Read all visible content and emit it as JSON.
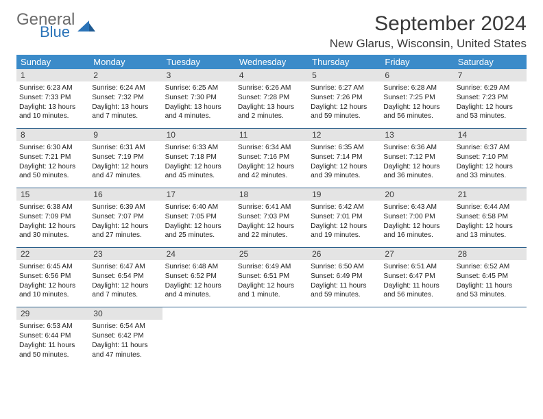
{
  "brand": {
    "general": "General",
    "blue": "Blue"
  },
  "title": "September 2024",
  "location": "New Glarus, Wisconsin, United States",
  "colors": {
    "header_bg": "#3b8bc9",
    "header_text": "#ffffff",
    "daynum_bg": "#e4e4e4",
    "rule": "#2a5e8a",
    "logo_blue": "#2a73b8",
    "logo_gray": "#6b6b6b",
    "page_bg": "#ffffff"
  },
  "daysOfWeek": [
    "Sunday",
    "Monday",
    "Tuesday",
    "Wednesday",
    "Thursday",
    "Friday",
    "Saturday"
  ],
  "weeks": [
    [
      {
        "n": "1",
        "sr": "6:23 AM",
        "ss": "7:33 PM",
        "dl": "13 hours and 10 minutes."
      },
      {
        "n": "2",
        "sr": "6:24 AM",
        "ss": "7:32 PM",
        "dl": "13 hours and 7 minutes."
      },
      {
        "n": "3",
        "sr": "6:25 AM",
        "ss": "7:30 PM",
        "dl": "13 hours and 4 minutes."
      },
      {
        "n": "4",
        "sr": "6:26 AM",
        "ss": "7:28 PM",
        "dl": "13 hours and 2 minutes."
      },
      {
        "n": "5",
        "sr": "6:27 AM",
        "ss": "7:26 PM",
        "dl": "12 hours and 59 minutes."
      },
      {
        "n": "6",
        "sr": "6:28 AM",
        "ss": "7:25 PM",
        "dl": "12 hours and 56 minutes."
      },
      {
        "n": "7",
        "sr": "6:29 AM",
        "ss": "7:23 PM",
        "dl": "12 hours and 53 minutes."
      }
    ],
    [
      {
        "n": "8",
        "sr": "6:30 AM",
        "ss": "7:21 PM",
        "dl": "12 hours and 50 minutes."
      },
      {
        "n": "9",
        "sr": "6:31 AM",
        "ss": "7:19 PM",
        "dl": "12 hours and 47 minutes."
      },
      {
        "n": "10",
        "sr": "6:33 AM",
        "ss": "7:18 PM",
        "dl": "12 hours and 45 minutes."
      },
      {
        "n": "11",
        "sr": "6:34 AM",
        "ss": "7:16 PM",
        "dl": "12 hours and 42 minutes."
      },
      {
        "n": "12",
        "sr": "6:35 AM",
        "ss": "7:14 PM",
        "dl": "12 hours and 39 minutes."
      },
      {
        "n": "13",
        "sr": "6:36 AM",
        "ss": "7:12 PM",
        "dl": "12 hours and 36 minutes."
      },
      {
        "n": "14",
        "sr": "6:37 AM",
        "ss": "7:10 PM",
        "dl": "12 hours and 33 minutes."
      }
    ],
    [
      {
        "n": "15",
        "sr": "6:38 AM",
        "ss": "7:09 PM",
        "dl": "12 hours and 30 minutes."
      },
      {
        "n": "16",
        "sr": "6:39 AM",
        "ss": "7:07 PM",
        "dl": "12 hours and 27 minutes."
      },
      {
        "n": "17",
        "sr": "6:40 AM",
        "ss": "7:05 PM",
        "dl": "12 hours and 25 minutes."
      },
      {
        "n": "18",
        "sr": "6:41 AM",
        "ss": "7:03 PM",
        "dl": "12 hours and 22 minutes."
      },
      {
        "n": "19",
        "sr": "6:42 AM",
        "ss": "7:01 PM",
        "dl": "12 hours and 19 minutes."
      },
      {
        "n": "20",
        "sr": "6:43 AM",
        "ss": "7:00 PM",
        "dl": "12 hours and 16 minutes."
      },
      {
        "n": "21",
        "sr": "6:44 AM",
        "ss": "6:58 PM",
        "dl": "12 hours and 13 minutes."
      }
    ],
    [
      {
        "n": "22",
        "sr": "6:45 AM",
        "ss": "6:56 PM",
        "dl": "12 hours and 10 minutes."
      },
      {
        "n": "23",
        "sr": "6:47 AM",
        "ss": "6:54 PM",
        "dl": "12 hours and 7 minutes."
      },
      {
        "n": "24",
        "sr": "6:48 AM",
        "ss": "6:52 PM",
        "dl": "12 hours and 4 minutes."
      },
      {
        "n": "25",
        "sr": "6:49 AM",
        "ss": "6:51 PM",
        "dl": "12 hours and 1 minute."
      },
      {
        "n": "26",
        "sr": "6:50 AM",
        "ss": "6:49 PM",
        "dl": "11 hours and 59 minutes."
      },
      {
        "n": "27",
        "sr": "6:51 AM",
        "ss": "6:47 PM",
        "dl": "11 hours and 56 minutes."
      },
      {
        "n": "28",
        "sr": "6:52 AM",
        "ss": "6:45 PM",
        "dl": "11 hours and 53 minutes."
      }
    ],
    [
      {
        "n": "29",
        "sr": "6:53 AM",
        "ss": "6:44 PM",
        "dl": "11 hours and 50 minutes."
      },
      {
        "n": "30",
        "sr": "6:54 AM",
        "ss": "6:42 PM",
        "dl": "11 hours and 47 minutes."
      },
      null,
      null,
      null,
      null,
      null
    ]
  ],
  "labels": {
    "sunrise": "Sunrise:",
    "sunset": "Sunset:",
    "daylight": "Daylight:"
  }
}
